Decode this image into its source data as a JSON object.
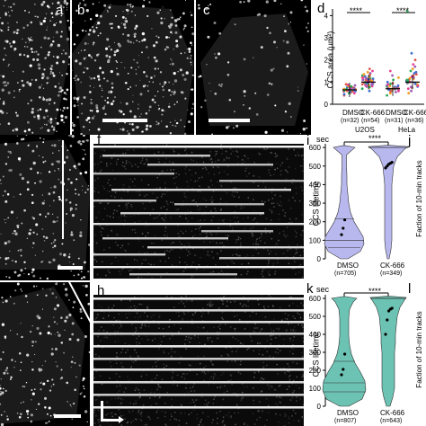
{
  "panels": {
    "a": "a",
    "b": "b",
    "c": "c",
    "d": "d",
    "f": "f",
    "h": "h",
    "i": "i",
    "j": "j",
    "k": "k",
    "l": "l"
  },
  "colors": {
    "violin_i": "#b9b8ee",
    "violin_k": "#6cc3b3",
    "dmso_dots": "#e05a4a",
    "ck666_dots": "#3d6fd1"
  },
  "chart_d": {
    "sig_u2os": "****",
    "sig_hela": "****",
    "ylabel": "CCS area (μm²)",
    "yticks": [
      "0",
      "1",
      "2",
      "3",
      "4"
    ],
    "xlabels": [
      "DMSO",
      "CK-666",
      "DMSO",
      "CK-666"
    ],
    "nlabels": [
      "(n=32)",
      "(n=54)",
      "(n=31)",
      "(n=36)"
    ],
    "groups": [
      "U2OS",
      "HeLa"
    ]
  },
  "chart_i": {
    "unit": "sec",
    "sig": "****",
    "ylabel": "CCS lifetime",
    "yticks": [
      "0",
      "100",
      "200",
      "300",
      "400",
      "500",
      "600"
    ],
    "xlabels": [
      "DMSO",
      "CK-666"
    ],
    "nlabels": [
      "(n=705)",
      "(n=349)"
    ],
    "right_label": "Faction of 10-min tracks"
  },
  "chart_k": {
    "unit": "sec",
    "sig": "****",
    "ylabel": "CCS lifetime",
    "yticks": [
      "0",
      "100",
      "200",
      "300",
      "400",
      "500",
      "600"
    ],
    "xlabels": [
      "DMSO",
      "CK-666"
    ],
    "nlabels": [
      "(n=807)",
      "(n=643)"
    ],
    "right_label": "Faction of 10-min tracks"
  },
  "chart_data": [
    {
      "type": "scatter",
      "ylabel": "CCS area (μm²)",
      "ylim": [
        0,
        4.3
      ],
      "categories": [
        "U2OS DMSO",
        "U2OS CK-666",
        "HeLa DMSO",
        "HeLa CK-666"
      ],
      "medians": [
        0.65,
        1.0,
        0.7,
        1.0
      ],
      "series": [
        {
          "name": "U2OS DMSO",
          "values": [
            0.4,
            0.45,
            0.5,
            0.52,
            0.55,
            0.58,
            0.6,
            0.6,
            0.62,
            0.63,
            0.65,
            0.65,
            0.66,
            0.68,
            0.7,
            0.7,
            0.72,
            0.74,
            0.75,
            0.78,
            0.8,
            0.82,
            0.85,
            0.88,
            0.9,
            0.55,
            0.6,
            0.68,
            0.72,
            0.5,
            0.58,
            0.64
          ]
        },
        {
          "name": "U2OS CK-666",
          "values": [
            0.6,
            0.7,
            0.75,
            0.8,
            0.85,
            0.9,
            0.92,
            0.95,
            0.98,
            1.0,
            1.0,
            1.02,
            1.05,
            1.08,
            1.1,
            1.12,
            1.15,
            1.2,
            1.25,
            1.3,
            1.35,
            1.4,
            1.5,
            1.6,
            0.88,
            0.95,
            1.05,
            1.1,
            0.82,
            0.97,
            1.03,
            1.18,
            1.22,
            0.9,
            1.0,
            1.07,
            1.15,
            0.78,
            0.86,
            0.93,
            1.01,
            1.09,
            1.13,
            1.28,
            1.45,
            0.96,
            1.04,
            1.11,
            0.94,
            0.99,
            1.06,
            1.16,
            1.2,
            1.32
          ]
        },
        {
          "name": "HeLa DMSO",
          "values": [
            0.4,
            0.5,
            0.55,
            0.6,
            0.62,
            0.65,
            0.68,
            0.7,
            0.7,
            0.72,
            0.75,
            0.78,
            0.8,
            0.82,
            0.85,
            0.9,
            0.95,
            1.0,
            1.1,
            1.2,
            1.3,
            1.5,
            0.58,
            0.66,
            0.74,
            0.69,
            0.77,
            0.63,
            0.71,
            0.84,
            0.92
          ]
        },
        {
          "name": "HeLa CK-666",
          "values": [
            0.5,
            0.6,
            0.7,
            0.75,
            0.8,
            0.85,
            0.9,
            0.95,
            1.0,
            1.0,
            1.05,
            1.1,
            1.15,
            1.2,
            1.25,
            1.3,
            1.4,
            1.5,
            1.6,
            1.7,
            1.8,
            2.0,
            2.3,
            4.2,
            0.88,
            0.97,
            1.02,
            1.12,
            0.92,
            1.08,
            1.18,
            0.78,
            0.83,
            1.35,
            1.45,
            0.99
          ]
        }
      ]
    },
    {
      "type": "violin",
      "ylabel": "CCS lifetime",
      "ylim": [
        0,
        620
      ],
      "categories": [
        "DMSO",
        "CK-666"
      ],
      "n": [
        705,
        349
      ],
      "replicate_means": [
        [
          130,
          165,
          210
        ],
        [
          490,
          500,
          510,
          515,
          520
        ]
      ],
      "quartiles": [
        [
          60,
          100,
          215
        ],
        [
          600,
          600,
          600
        ]
      ]
    },
    {
      "type": "violin",
      "ylabel": "CCS lifetime",
      "ylim": [
        0,
        620
      ],
      "categories": [
        "DMSO",
        "CK-666"
      ],
      "n": [
        807,
        643
      ],
      "replicate_means": [
        [
          175,
          205,
          290
        ],
        [
          400,
          480,
          530,
          540,
          545
        ]
      ],
      "quartiles": [
        [
          80,
          130,
          250
        ],
        [
          600,
          600,
          600
        ]
      ]
    }
  ]
}
